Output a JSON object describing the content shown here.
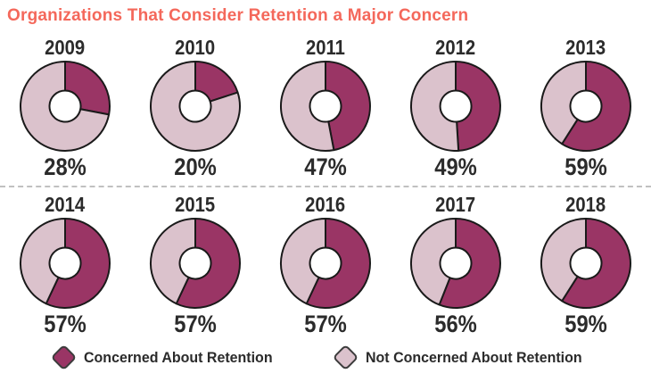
{
  "title": "Organizations That Consider Retention a Major Concern",
  "colors": {
    "title": "#F4685B",
    "concerned": "#9A3565",
    "not_concerned": "#DBC2CC",
    "outline": "#1A1A1A",
    "divider": "#C0C0C0",
    "text": "#2B2B2B"
  },
  "legend": {
    "items": [
      {
        "label": "Concerned About Retention",
        "color": "#9A3565"
      },
      {
        "label": "Not Concerned About Retention",
        "color": "#DBC2CC"
      }
    ]
  },
  "chart_data": {
    "type": "pie",
    "subtype": "donut-grid",
    "title": "Organizations That Consider Retention a Major Concern",
    "legend_position": "bottom",
    "series_labels": [
      "Concerned About Retention",
      "Not Concerned About Retention"
    ],
    "slice_start": "12-oclock-clockwise",
    "items": [
      {
        "year": "2009",
        "concerned_pct": 28,
        "not_concerned_pct": 72,
        "pct_label": "28%"
      },
      {
        "year": "2010",
        "concerned_pct": 20,
        "not_concerned_pct": 80,
        "pct_label": "20%"
      },
      {
        "year": "2011",
        "concerned_pct": 47,
        "not_concerned_pct": 53,
        "pct_label": "47%"
      },
      {
        "year": "2012",
        "concerned_pct": 49,
        "not_concerned_pct": 51,
        "pct_label": "49%"
      },
      {
        "year": "2013",
        "concerned_pct": 59,
        "not_concerned_pct": 41,
        "pct_label": "59%"
      },
      {
        "year": "2014",
        "concerned_pct": 57,
        "not_concerned_pct": 43,
        "pct_label": "57%"
      },
      {
        "year": "2015",
        "concerned_pct": 57,
        "not_concerned_pct": 43,
        "pct_label": "57%"
      },
      {
        "year": "2016",
        "concerned_pct": 57,
        "not_concerned_pct": 43,
        "pct_label": "57%"
      },
      {
        "year": "2017",
        "concerned_pct": 56,
        "not_concerned_pct": 44,
        "pct_label": "56%"
      },
      {
        "year": "2018",
        "concerned_pct": 59,
        "not_concerned_pct": 41,
        "pct_label": "59%"
      }
    ]
  }
}
